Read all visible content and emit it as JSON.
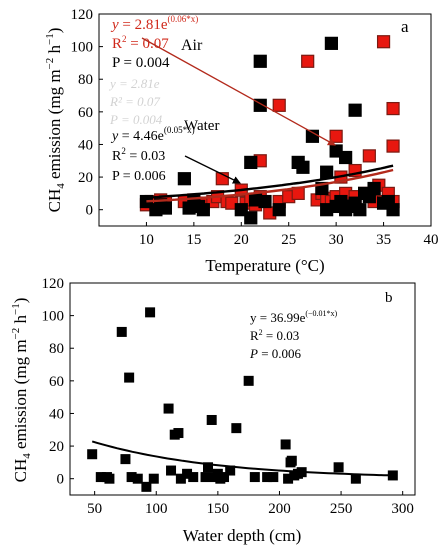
{
  "chart_data": [
    {
      "panel": "a",
      "type": "scatter",
      "xlabel": "Temperature (°C)",
      "ylabel": "CH4 emission (mg m−2 h−1)",
      "ylabel_base": "CH",
      "ylabel_sub": "4",
      "ylabel_rest": " emission (mg m",
      "ylabel_exp1": "−2",
      "ylabel_mid": " h",
      "ylabel_exp2": "−1",
      "ylabel_end": ")",
      "xlim": [
        5,
        40
      ],
      "ylim": [
        -10,
        120
      ],
      "xticks": [
        10,
        15,
        20,
        25,
        30,
        35,
        40
      ],
      "yticks": [
        0,
        20,
        40,
        60,
        80,
        100,
        120
      ],
      "series": [
        {
          "name": "Air",
          "color": "#e8170f",
          "edge": "#7a1a12",
          "x": [
            10,
            10.5,
            11,
            11.5,
            12,
            14,
            15,
            16,
            17,
            17.5,
            18,
            18.5,
            19,
            20,
            20.5,
            21,
            21.5,
            22,
            22,
            23,
            24,
            24,
            25,
            26,
            27,
            28,
            28.5,
            29,
            29.5,
            30,
            30,
            30.5,
            31,
            32,
            32,
            33,
            33.5,
            34,
            34,
            34.5,
            35,
            35,
            35.5,
            36,
            36,
            36
          ],
          "y": [
            3,
            5,
            4,
            6,
            5,
            5,
            6,
            4,
            5,
            8,
            19,
            5,
            4,
            12,
            4,
            6,
            3,
            30,
            8,
            -2,
            64,
            5,
            8,
            10,
            91,
            6,
            10,
            7,
            5,
            45,
            8,
            20,
            10,
            24,
            8,
            10,
            33,
            12,
            5,
            15,
            103,
            5,
            10,
            62,
            39,
            5
          ]
        },
        {
          "name": "Water",
          "color": "#000000",
          "edge": "#000000",
          "x": [
            10,
            11,
            11.5,
            12,
            14,
            14.5,
            15,
            15.5,
            16,
            20,
            21,
            21,
            21.5,
            22,
            22,
            22.5,
            24,
            26,
            26.5,
            27.5,
            28.5,
            29,
            29,
            29.5,
            30,
            30,
            30.5,
            31,
            31,
            31.5,
            32,
            32,
            32.5,
            33,
            33.5,
            34,
            35,
            35.5,
            36
          ],
          "y": [
            5,
            0,
            3,
            1,
            19,
            1,
            5,
            2,
            0,
            0,
            29,
            -5,
            6,
            91,
            64,
            5,
            0,
            29,
            26,
            45,
            13,
            23,
            0,
            102,
            36,
            2,
            5,
            32,
            0,
            2,
            4,
            61,
            0,
            10,
            8,
            13,
            4,
            5,
            0
          ]
        }
      ],
      "fits": [
        {
          "series": "Air",
          "a": 2.81,
          "b": 0.06,
          "eq_prefix": "y = 2.81",
          "eq_exp": "(0.06*x)",
          "r2_label": "R",
          "r2_sup": "2",
          "r2_value": " = 0.07",
          "p_text": "P = 0.004",
          "label": "Air"
        },
        {
          "series": "Water",
          "a": 4.46,
          "b": 0.05,
          "eq_prefix": "y = 4.46",
          "eq_exp": "(0.05*x)",
          "r2_label": "R",
          "r2_sup": "2",
          "r2_value": " = 0.03",
          "p_text": "P = 0.006",
          "label": "Water"
        }
      ],
      "blurred_ghost_text": [
        "y = 2.81e",
        "R² = 0.07",
        "P = 0.004"
      ],
      "arrows": [
        "Air label to Air curve",
        "Water label to Water curve"
      ]
    },
    {
      "panel": "b",
      "type": "scatter",
      "xlabel": "Water depth (cm)",
      "ylabel": "CH4 emission (mg m−2 h−1)",
      "ylabel_base": "CH",
      "ylabel_sub": "4",
      "ylabel_rest": " emission (mg m",
      "ylabel_exp1": "−2",
      "ylabel_mid": " h",
      "ylabel_exp2": "−1",
      "ylabel_end": ")",
      "xlim": [
        30,
        310
      ],
      "ylim": [
        -10,
        120
      ],
      "xticks": [
        50,
        100,
        150,
        200,
        250,
        300
      ],
      "yticks": [
        0,
        20,
        40,
        60,
        80,
        100,
        120
      ],
      "series": [
        {
          "name": "",
          "color": "#000000",
          "x": [
            48,
            55,
            60,
            62,
            72,
            75,
            78,
            80,
            85,
            92,
            95,
            98,
            110,
            112,
            115,
            118,
            120,
            125,
            130,
            140,
            142,
            145,
            148,
            150,
            152,
            155,
            160,
            165,
            175,
            180,
            190,
            195,
            205,
            207,
            209,
            210,
            212,
            215,
            218,
            248,
            262,
            292
          ],
          "y": [
            15,
            1,
            1,
            0,
            90,
            12,
            62,
            1,
            0,
            -5,
            102,
            0,
            43,
            5,
            27,
            28,
            0,
            3,
            1,
            1,
            7,
            36,
            1,
            3,
            0,
            1,
            5,
            31,
            60,
            1,
            1,
            1,
            21,
            0,
            10,
            11,
            2,
            3,
            4,
            7,
            0,
            2
          ]
        }
      ],
      "fits": [
        {
          "a": 36.99,
          "b": -0.01,
          "eq_prefix": "y = 36.99e",
          "eq_exp": "(−0.01*x)",
          "r2_label": "R",
          "r2_sup": "2",
          "r2_value": " = 0.03",
          "p_italic": "P",
          "p_rest": " = 0.006"
        }
      ]
    }
  ]
}
